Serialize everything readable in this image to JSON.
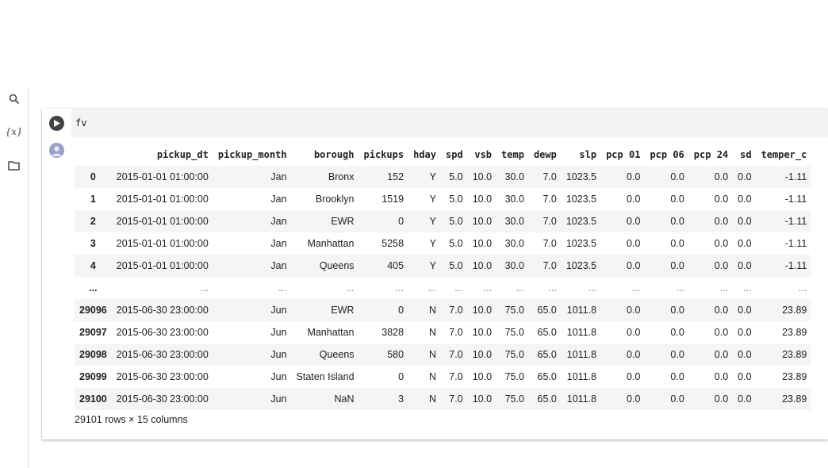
{
  "sidebar": {
    "icons": [
      {
        "name": "search-icon"
      },
      {
        "name": "variables-icon",
        "label": "{x}"
      },
      {
        "name": "folder-icon"
      }
    ]
  },
  "cell": {
    "code": "fv"
  },
  "dataframe": {
    "columns": [
      "",
      "pickup_dt",
      "pickup_month",
      "borough",
      "pickups",
      "hday",
      "spd",
      "vsb",
      "temp",
      "dewp",
      "slp",
      "pcp 01",
      "pcp 06",
      "pcp 24",
      "sd",
      "temper_c"
    ],
    "rows": [
      [
        "0",
        "2015-01-01 01:00:00",
        "Jan",
        "Bronx",
        "152",
        "Y",
        "5.0",
        "10.0",
        "30.0",
        "7.0",
        "1023.5",
        "0.0",
        "0.0",
        "0.0",
        "0.0",
        "-1.11"
      ],
      [
        "1",
        "2015-01-01 01:00:00",
        "Jan",
        "Brooklyn",
        "1519",
        "Y",
        "5.0",
        "10.0",
        "30.0",
        "7.0",
        "1023.5",
        "0.0",
        "0.0",
        "0.0",
        "0.0",
        "-1.11"
      ],
      [
        "2",
        "2015-01-01 01:00:00",
        "Jan",
        "EWR",
        "0",
        "Y",
        "5.0",
        "10.0",
        "30.0",
        "7.0",
        "1023.5",
        "0.0",
        "0.0",
        "0.0",
        "0.0",
        "-1.11"
      ],
      [
        "3",
        "2015-01-01 01:00:00",
        "Jan",
        "Manhattan",
        "5258",
        "Y",
        "5.0",
        "10.0",
        "30.0",
        "7.0",
        "1023.5",
        "0.0",
        "0.0",
        "0.0",
        "0.0",
        "-1.11"
      ],
      [
        "4",
        "2015-01-01 01:00:00",
        "Jan",
        "Queens",
        "405",
        "Y",
        "5.0",
        "10.0",
        "30.0",
        "7.0",
        "1023.5",
        "0.0",
        "0.0",
        "0.0",
        "0.0",
        "-1.11"
      ],
      [
        "...",
        "...",
        "...",
        "...",
        "...",
        "...",
        "...",
        "...",
        "...",
        "...",
        "...",
        "...",
        "...",
        "...",
        "...",
        "..."
      ],
      [
        "29096",
        "2015-06-30 23:00:00",
        "Jun",
        "EWR",
        "0",
        "N",
        "7.0",
        "10.0",
        "75.0",
        "65.0",
        "1011.8",
        "0.0",
        "0.0",
        "0.0",
        "0.0",
        "23.89"
      ],
      [
        "29097",
        "2015-06-30 23:00:00",
        "Jun",
        "Manhattan",
        "3828",
        "N",
        "7.0",
        "10.0",
        "75.0",
        "65.0",
        "1011.8",
        "0.0",
        "0.0",
        "0.0",
        "0.0",
        "23.89"
      ],
      [
        "29098",
        "2015-06-30 23:00:00",
        "Jun",
        "Queens",
        "580",
        "N",
        "7.0",
        "10.0",
        "75.0",
        "65.0",
        "1011.8",
        "0.0",
        "0.0",
        "0.0",
        "0.0",
        "23.89"
      ],
      [
        "29099",
        "2015-06-30 23:00:00",
        "Jun",
        "Staten Island",
        "0",
        "N",
        "7.0",
        "10.0",
        "75.0",
        "65.0",
        "1011.8",
        "0.0",
        "0.0",
        "0.0",
        "0.0",
        "23.89"
      ],
      [
        "29100",
        "2015-06-30 23:00:00",
        "Jun",
        "NaN",
        "3",
        "N",
        "7.0",
        "10.0",
        "75.0",
        "65.0",
        "1011.8",
        "0.0",
        "0.0",
        "0.0",
        "0.0",
        "23.89"
      ]
    ],
    "shape_text": "29101 rows × 15 columns"
  }
}
